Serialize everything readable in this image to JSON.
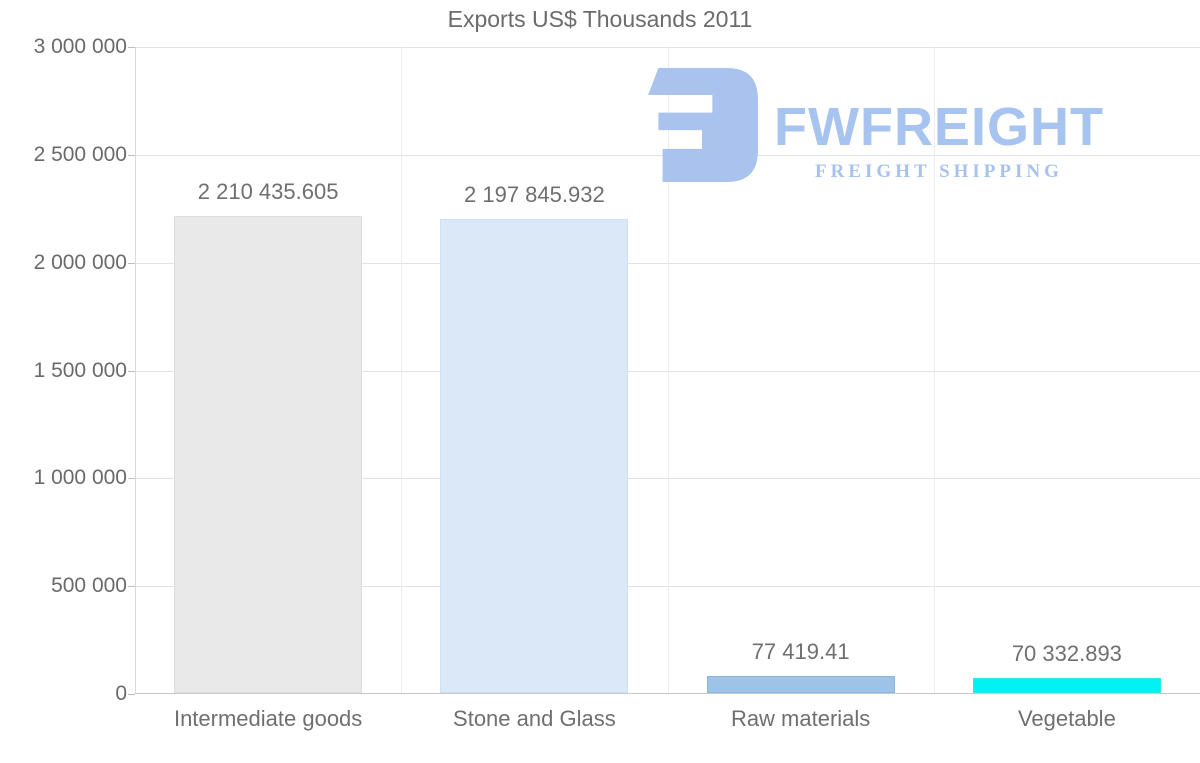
{
  "title": "Exports US$ Thousands 2011",
  "chart_data": {
    "type": "bar",
    "title": "Exports US$ Thousands 2011",
    "categories": [
      "Intermediate goods",
      "Stone and Glass",
      "Raw materials",
      "Vegetable"
    ],
    "values": [
      2210435.605,
      2197845.932,
      77419.41,
      70332.893
    ],
    "value_labels": [
      "2 210 435.605",
      "2 197 845.932",
      "77 419.41",
      "70 332.893"
    ],
    "bar_colors": [
      "#e9e9e9",
      "#dae8f8",
      "#9dc3e6",
      "#00f2f2"
    ],
    "bar_border_colors": [
      "#dedede",
      "#cde0f3",
      "#8ab5dd",
      "#2fe9e9"
    ],
    "xlabel": "",
    "ylabel": "",
    "ylim": [
      0,
      3000000
    ],
    "ytick_interval": 500000,
    "ytick_labels_bottom_up": [
      "0",
      "500 000",
      "1 000 000",
      "1 500 000",
      "2 000 000",
      "2 500 000",
      "3 000 000"
    ],
    "grid": true,
    "legend": "none"
  },
  "watermark": {
    "brand": "FWFREIGHT",
    "tagline": "FREIGHT SHIPPING",
    "color": "#a7c3f0"
  },
  "colors": {
    "background": "#ffffff",
    "title_text": "#6b6b6b",
    "axis_text": "#6a6a6a",
    "h_gridline": "#e2e2e2",
    "v_gridline": "#ededed",
    "x_axis_line": "#c9c9c9",
    "y_axis_line": "#d9d9d9"
  }
}
